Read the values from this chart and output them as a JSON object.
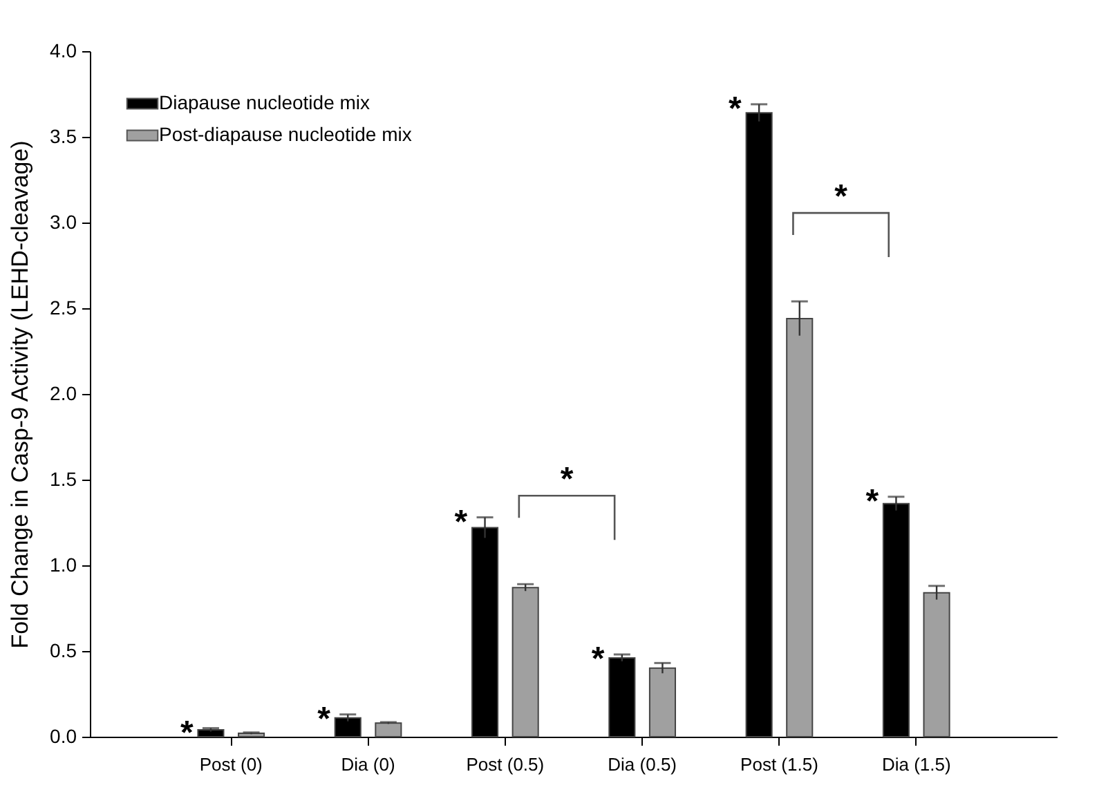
{
  "chart_data": {
    "type": "bar",
    "ylabel": "Fold Change in Casp-9 Activity (LEHD-cleavage)",
    "categories": [
      "Post (0)",
      "Dia (0)",
      "Post (0.5)",
      "Dia  (0.5)",
      "Post (1.5)",
      "Dia (1.5)"
    ],
    "series": [
      {
        "name": "Diapause nucleotide mix",
        "color": "#000000",
        "values": [
          0.04,
          0.11,
          1.22,
          0.46,
          3.64,
          1.36
        ],
        "errors": [
          0.01,
          0.02,
          0.06,
          0.02,
          0.05,
          0.04
        ]
      },
      {
        "name": "Post-diapause nucleotide mix",
        "color": "#a0a0a0",
        "values": [
          0.02,
          0.08,
          0.87,
          0.4,
          2.44,
          0.84
        ],
        "errors": [
          0.005,
          0.005,
          0.02,
          0.03,
          0.1,
          0.04
        ]
      }
    ],
    "ylim": [
      0,
      4
    ],
    "yticks": [
      {
        "value": 0,
        "label": "0.0"
      },
      0.5,
      {
        "value": 1,
        "label": "1.0"
      },
      1.5,
      {
        "value": 2,
        "label": "2.0"
      },
      2.5,
      {
        "value": 3,
        "label": "3.0"
      },
      3.5,
      {
        "value": 4,
        "label": "4.0"
      }
    ],
    "annotations": [
      "*",
      "*",
      "*",
      "*",
      "*",
      "*",
      "*",
      "*"
    ],
    "legend": "top left",
    "grid": false
  }
}
